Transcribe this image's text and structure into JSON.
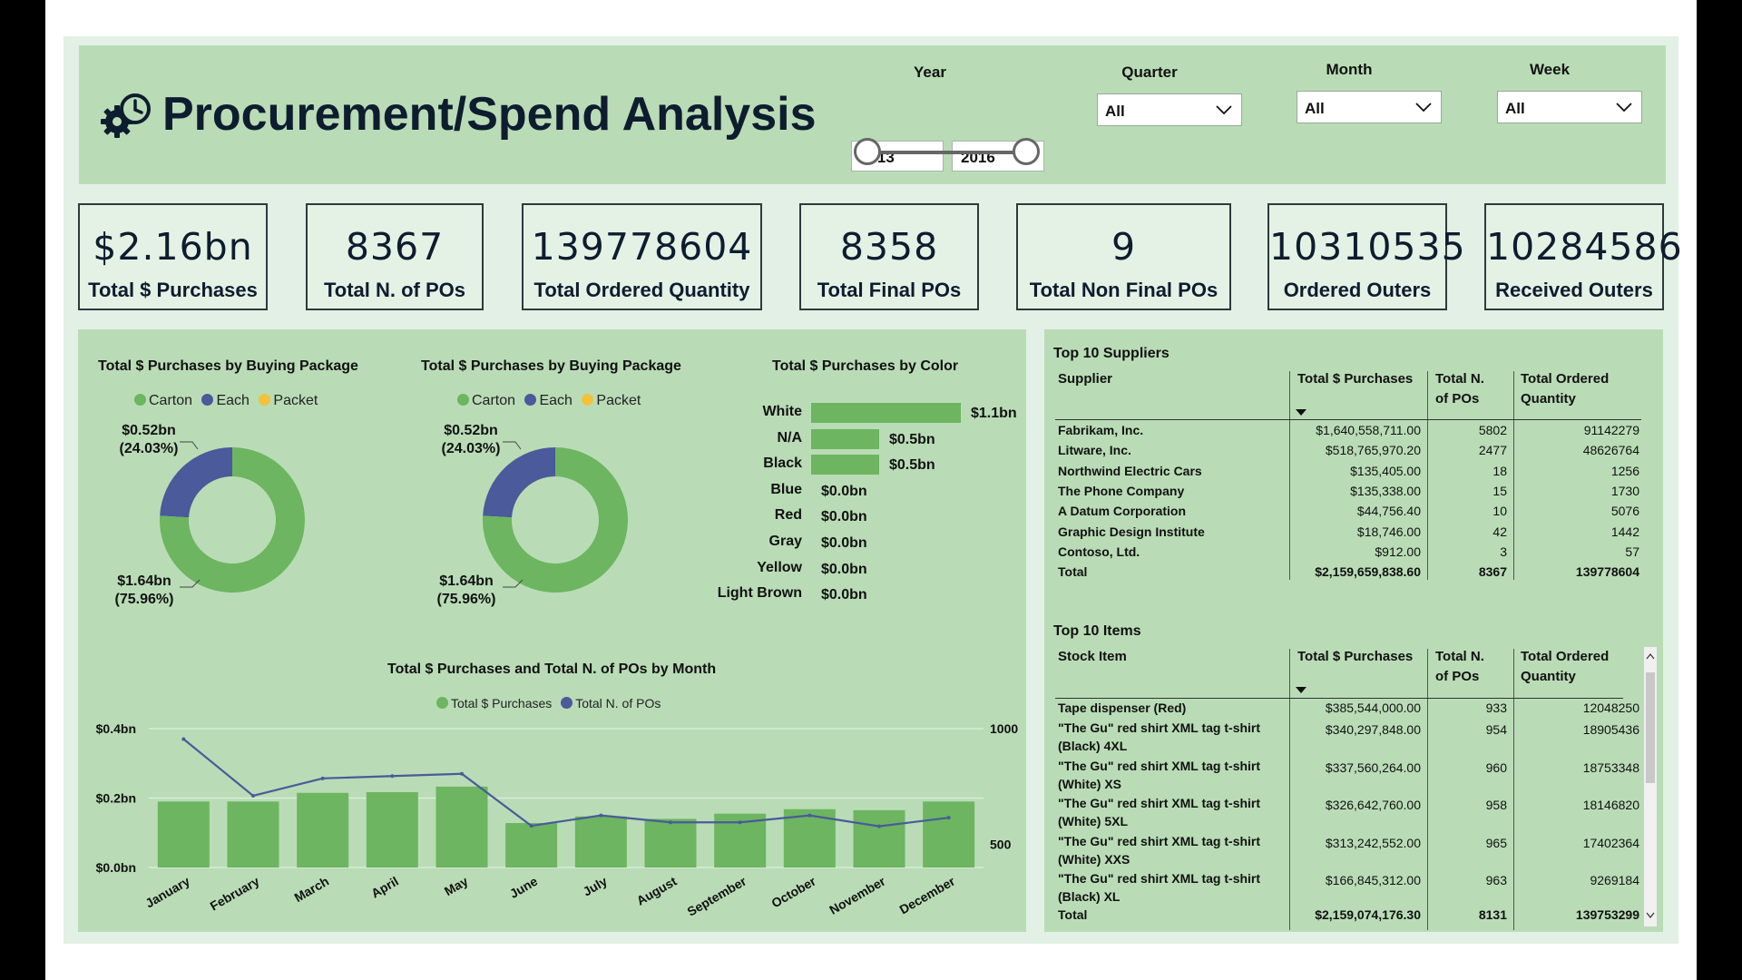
{
  "header": {
    "title": "Procurement/Spend Analysis",
    "filters": {
      "year": {
        "label": "Year",
        "from": "2013",
        "to": "2016"
      },
      "quarter": {
        "label": "Quarter",
        "value": "All"
      },
      "month": {
        "label": "Month",
        "value": "All"
      },
      "week": {
        "label": "Week",
        "value": "All"
      }
    }
  },
  "kpis": [
    {
      "value": "$2.16bn",
      "label": "Total $ Purchases"
    },
    {
      "value": "8367",
      "label": "Total N. of POs"
    },
    {
      "value": "139778604",
      "label": "Total Ordered Quantity"
    },
    {
      "value": "8358",
      "label": "Total Final POs"
    },
    {
      "value": "9",
      "label": "Total Non Final POs"
    },
    {
      "value": "10310535",
      "label": "Ordered Outers"
    },
    {
      "value": "10284586",
      "label": "Received Outers"
    }
  ],
  "colors": {
    "green": "#6db560",
    "blue": "#4a5a9a",
    "yellow": "#f2c23c"
  },
  "donut1": {
    "title": "Total $ Purchases by Buying Package",
    "legend": [
      "Carton",
      "Each",
      "Packet"
    ],
    "top_label": "$0.52bn",
    "top_pct": "(24.03%)",
    "bottom_label": "$1.64bn",
    "bottom_pct": "(75.96%)"
  },
  "donut2": {
    "title": "Total $ Purchases by Buying Package",
    "legend": [
      "Carton",
      "Each",
      "Packet"
    ],
    "top_label": "$0.52bn",
    "top_pct": "(24.03%)",
    "bottom_label": "$1.64bn",
    "bottom_pct": "(75.96%)"
  },
  "color_chart": {
    "title": "Total $ Purchases by Color",
    "rows": [
      {
        "label": "White",
        "display": "$1.1bn"
      },
      {
        "label": "N/A",
        "display": "$0.5bn"
      },
      {
        "label": "Black",
        "display": "$0.5bn"
      },
      {
        "label": "Blue",
        "display": "$0.0bn"
      },
      {
        "label": "Red",
        "display": "$0.0bn"
      },
      {
        "label": "Gray",
        "display": "$0.0bn"
      },
      {
        "label": "Yellow",
        "display": "$0.0bn"
      },
      {
        "label": "Light Brown",
        "display": "$0.0bn"
      }
    ]
  },
  "combo": {
    "title": "Total $ Purchases and Total N. of POs by Month",
    "legend_bar": "Total $ Purchases",
    "legend_line": "Total N. of POs",
    "y_left_ticks": [
      "$0.4bn",
      "$0.2bn",
      "$0.0bn"
    ],
    "y_right_ticks": [
      "1000",
      "500"
    ]
  },
  "chart_data": [
    {
      "type": "pie",
      "title": "Total $ Purchases by Buying Package",
      "categories": [
        "Carton",
        "Each",
        "Packet"
      ],
      "values": [
        1.64,
        0.52,
        0.0
      ],
      "percent": [
        75.96,
        24.03,
        0.01
      ]
    },
    {
      "type": "pie",
      "title": "Total $ Purchases by Buying Package",
      "categories": [
        "Carton",
        "Each",
        "Packet"
      ],
      "values": [
        1.64,
        0.52,
        0.0
      ],
      "percent": [
        75.96,
        24.03,
        0.01
      ]
    },
    {
      "type": "bar",
      "title": "Total $ Purchases by Color",
      "categories": [
        "White",
        "N/A",
        "Black",
        "Blue",
        "Red",
        "Gray",
        "Yellow",
        "Light Brown"
      ],
      "values": [
        1.1,
        0.5,
        0.5,
        0.0,
        0.0,
        0.0,
        0.0,
        0.0
      ],
      "xlim": [
        0,
        1.1
      ]
    },
    {
      "type": "bar",
      "title": "Total $ Purchases and Total N. of POs by Month",
      "categories": [
        "January",
        "February",
        "March",
        "April",
        "May",
        "June",
        "July",
        "August",
        "September",
        "October",
        "November",
        "December"
      ],
      "series": [
        {
          "name": "Total $ Purchases",
          "type": "bar",
          "axis": "left",
          "values": [
            0.19,
            0.19,
            0.215,
            0.217,
            0.233,
            0.128,
            0.147,
            0.14,
            0.155,
            0.168,
            0.165,
            0.19
          ]
        },
        {
          "name": "Total N. of POs",
          "type": "line",
          "axis": "right",
          "values": [
            955,
            710,
            785,
            795,
            805,
            580,
            625,
            595,
            595,
            625,
            578,
            615
          ]
        }
      ],
      "ylim_left": [
        0,
        0.4
      ],
      "ylim_right": [
        400,
        1000
      ]
    }
  ],
  "suppliers": {
    "title": "Top 10 Suppliers",
    "headers": [
      "Supplier",
      "Total $ Purchases",
      "Total N. of POs",
      "Total Ordered Quantity"
    ],
    "rows": [
      [
        "Fabrikam, Inc.",
        "$1,640,558,711.00",
        "5802",
        "91142279"
      ],
      [
        "Litware, Inc.",
        "$518,765,970.20",
        "2477",
        "48626764"
      ],
      [
        "Northwind Electric Cars",
        "$135,405.00",
        "18",
        "1256"
      ],
      [
        "The Phone Company",
        "$135,338.00",
        "15",
        "1730"
      ],
      [
        "A Datum Corporation",
        "$44,756.40",
        "10",
        "5076"
      ],
      [
        "Graphic Design Institute",
        "$18,746.00",
        "42",
        "1442"
      ],
      [
        "Contoso, Ltd.",
        "$912.00",
        "3",
        "57"
      ]
    ],
    "total": [
      "Total",
      "$2,159,659,838.60",
      "8367",
      "139778604"
    ]
  },
  "items": {
    "title": "Top 10 Items",
    "headers": [
      "Stock Item",
      "Total $ Purchases",
      "Total N. of POs",
      "Total Ordered Quantity"
    ],
    "rows": [
      [
        "Tape dispenser (Red)",
        "",
        "$385,544,000.00",
        "933",
        "12048250"
      ],
      [
        "\"The Gu\" red shirt XML tag t-shirt",
        "(Black) 4XL",
        "$340,297,848.00",
        "954",
        "18905436"
      ],
      [
        "\"The Gu\" red shirt XML tag t-shirt",
        "(White) XS",
        "$337,560,264.00",
        "960",
        "18753348"
      ],
      [
        "\"The Gu\" red shirt XML tag t-shirt",
        "(White) 5XL",
        "$326,642,760.00",
        "958",
        "18146820"
      ],
      [
        "\"The Gu\" red shirt XML tag t-shirt",
        "(White) XXS",
        "$313,242,552.00",
        "965",
        "17402364"
      ],
      [
        "\"The Gu\" red shirt XML tag t-shirt",
        "(Black) XL",
        "$166,845,312.00",
        "963",
        "9269184"
      ]
    ],
    "total": [
      "Total",
      "$2,159,074,176.30",
      "8131",
      "139753299"
    ]
  }
}
